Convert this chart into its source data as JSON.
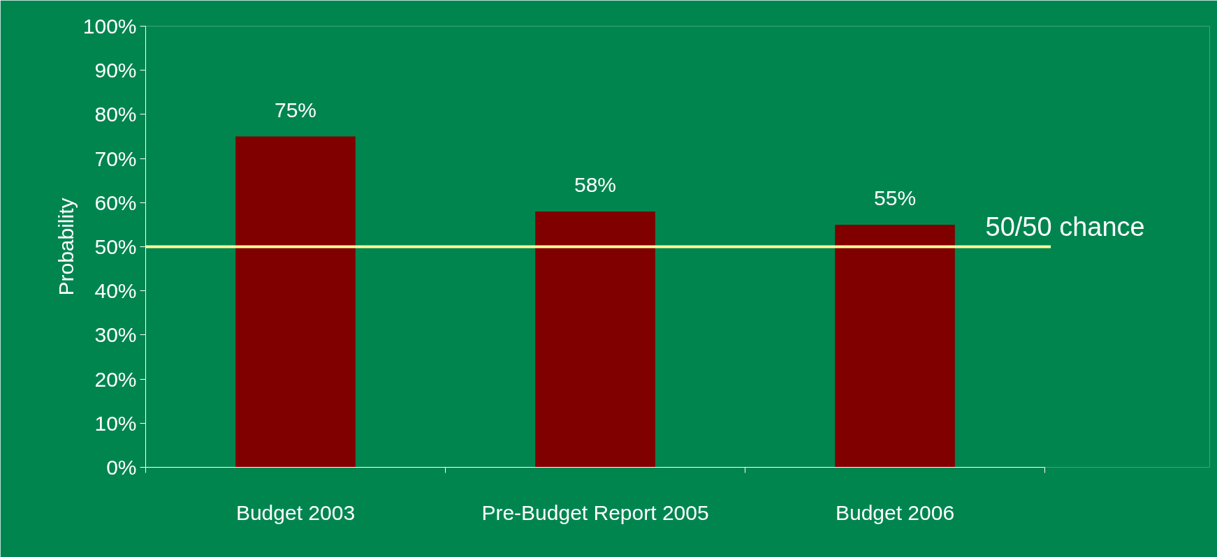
{
  "chart_data": {
    "type": "bar",
    "ylabel": "Probability",
    "categories": [
      "Budget 2003",
      "Pre-Budget Report 2005",
      "Budget 2006"
    ],
    "values": [
      75,
      58,
      55
    ],
    "color": "#800000",
    "value_labels": [
      "75%",
      "58%",
      "55%"
    ],
    "ylim": [
      0,
      100
    ],
    "yticks": [
      {
        "value": 0,
        "label": "0%"
      },
      {
        "value": 10,
        "label": "10%"
      },
      {
        "value": 20,
        "label": "20%"
      },
      {
        "value": 30,
        "label": "30%"
      },
      {
        "value": 40,
        "label": "40%"
      },
      {
        "value": 50,
        "label": "50%"
      },
      {
        "value": 60,
        "label": "60%"
      },
      {
        "value": 70,
        "label": "70%"
      },
      {
        "value": 80,
        "label": "80%"
      },
      {
        "value": 90,
        "label": "90%"
      },
      {
        "value": 100,
        "label": "100%"
      }
    ],
    "ref_lines": [
      {
        "axis": "y",
        "value": 50,
        "label": "50/50 chance",
        "color": "#ffff99",
        "line_style": "solid"
      }
    ],
    "grid": false
  }
}
